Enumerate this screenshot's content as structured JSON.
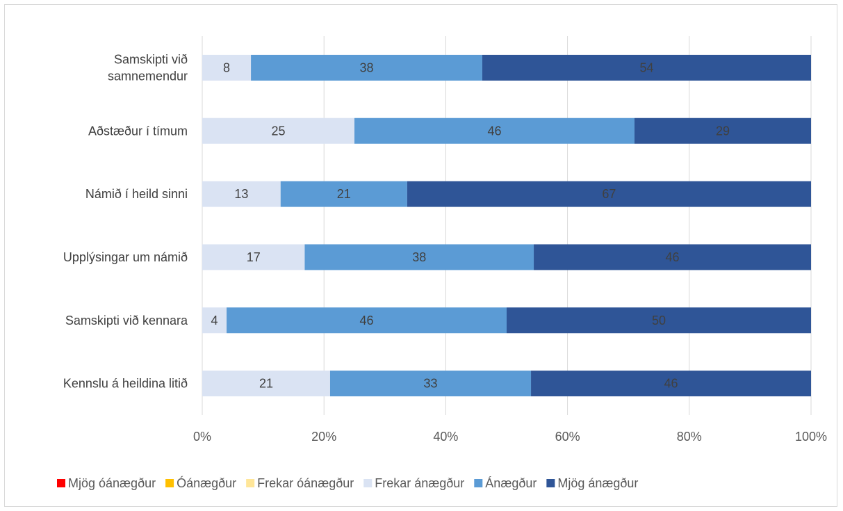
{
  "chart_data": {
    "type": "bar",
    "orientation": "horizontal",
    "stacking": "percent",
    "categories": [
      "Samskipti við samnemendur",
      "Aðstæður í tímum",
      "Námið í heild sinni",
      "Upplýsingar um námið",
      "Samskipti við kennara",
      "Kennslu á heildina litið"
    ],
    "category_lines": [
      [
        "Samskipti við",
        "samnemendur"
      ],
      [
        "Aðstæður í tímum"
      ],
      [
        "Námið í heild sinni"
      ],
      [
        "Upplýsingar um námið"
      ],
      [
        "Samskipti við kennara"
      ],
      [
        "Kennslu á heildina litið"
      ]
    ],
    "series": [
      {
        "name": "Mjög óánægður",
        "color": "#ff0000",
        "values": [
          0,
          0,
          0,
          0,
          0,
          0
        ]
      },
      {
        "name": "Óánægður",
        "color": "#ffc000",
        "values": [
          0,
          0,
          0,
          0,
          0,
          0
        ]
      },
      {
        "name": "Frekar óánægður",
        "color": "#ffe699",
        "values": [
          0,
          0,
          0,
          0,
          0,
          0
        ]
      },
      {
        "name": "Frekar ánægður",
        "color": "#dae3f3",
        "values": [
          8,
          25,
          13,
          17,
          4,
          21
        ]
      },
      {
        "name": "Ánægður",
        "color": "#5b9bd5",
        "values": [
          38,
          46,
          21,
          38,
          46,
          33
        ]
      },
      {
        "name": "Mjög ánægður",
        "color": "#2f5597",
        "values": [
          54,
          29,
          67,
          46,
          50,
          46
        ]
      }
    ],
    "xlim": [
      0,
      100
    ],
    "x_ticks": [
      "0%",
      "20%",
      "40%",
      "60%",
      "80%",
      "100%"
    ],
    "grid": true,
    "legend_position": "bottom",
    "title": "",
    "xlabel": "",
    "ylabel": ""
  }
}
